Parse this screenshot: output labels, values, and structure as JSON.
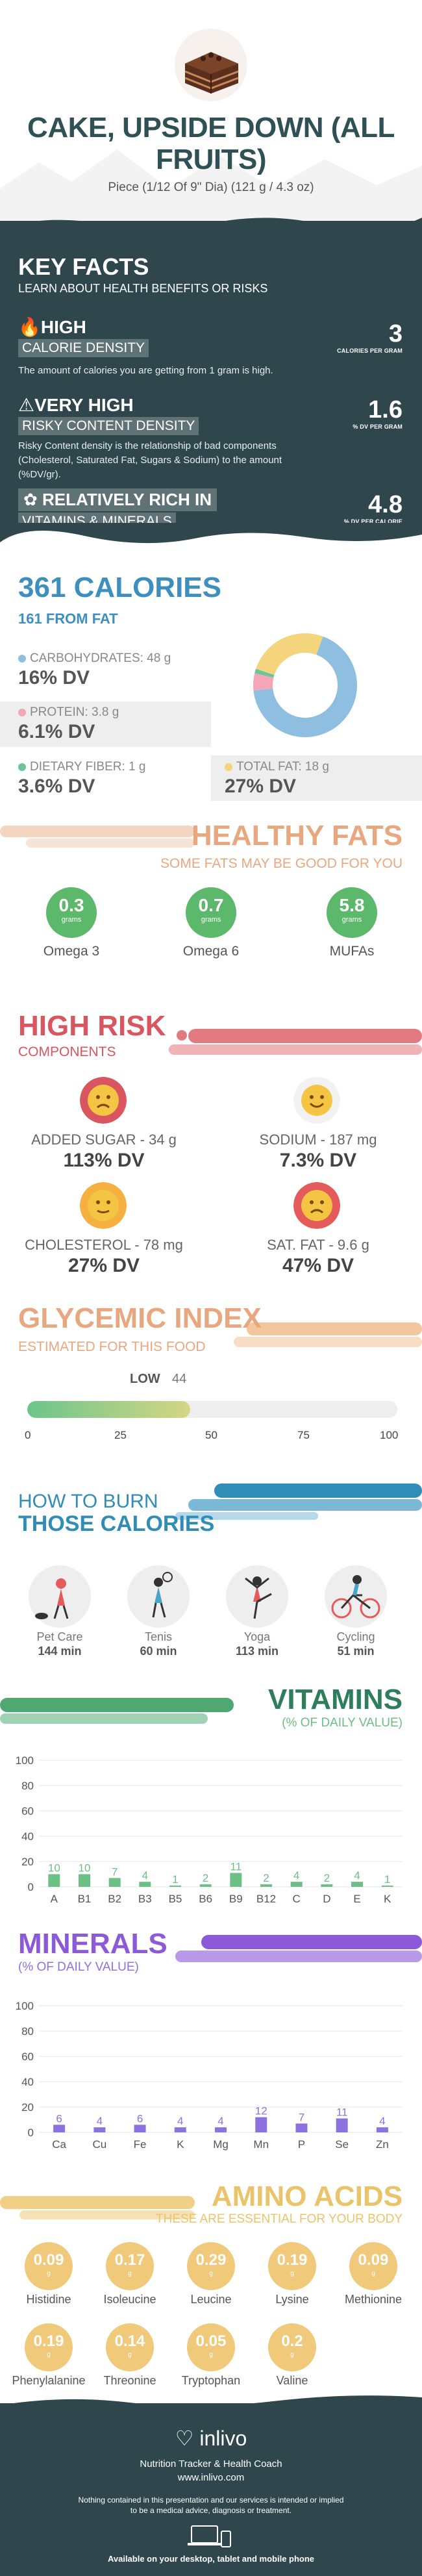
{
  "header": {
    "title": "CAKE, UPSIDE DOWN (ALL FRUITS)",
    "serving": "Piece (1/12 Of 9\" Dia) (121 g / 4.3 oz)"
  },
  "key_facts": {
    "title": "KEY FACTS",
    "subtitle": "LEARN ABOUT HEALTH BENEFITS OR RISKS",
    "items": [
      {
        "line1": "HIGH",
        "line2": "CALORIE DENSITY",
        "desc": "The amount of calories you are getting from 1 gram is high.",
        "value": "3",
        "unit": "CALORIES PER GRAM",
        "icon": "flame-icon"
      },
      {
        "line1": "VERY HIGH",
        "line2": "RISKY CONTENT DENSITY",
        "desc": "Risky Content density is the relationship of bad components (Cholesterol, Saturated Fat, Sugars & Sodium) to the amount (%DV/gr).",
        "value": "1.6",
        "unit": "% DV PER GRAM",
        "icon": "warning-icon"
      },
      {
        "line1": "RELATIVELY RICH  IN",
        "line2": "VITAMINS & MINERALS",
        "desc": "",
        "value": "4.8",
        "unit": "% DV PER CALORIE",
        "icon": "leaf-icon"
      }
    ]
  },
  "calories": {
    "title": "361 CALORIES",
    "subtitle": "161 FROM FAT",
    "macros": [
      {
        "label": "CARBOHYDRATES: 48 g",
        "dv": "16% DV",
        "color": "#8fbfe0"
      },
      {
        "label": "PROTEIN: 3.8 g",
        "dv": "6.1% DV",
        "color": "#f3a6b8"
      },
      {
        "label": "DIETARY FIBER: 1 g",
        "dv": "3.6% DV",
        "color": "#6cc59a"
      },
      {
        "label": "TOTAL FAT: 18 g",
        "dv": "27% DV",
        "color": "#f4d47c"
      }
    ],
    "donut": [
      {
        "name": "carbohydrates",
        "value": 48,
        "color": "#8fbfe0"
      },
      {
        "name": "protein",
        "value": 3.8,
        "color": "#f3a6b8"
      },
      {
        "name": "fiber",
        "value": 1,
        "color": "#6cc59a"
      },
      {
        "name": "fat",
        "value": 18,
        "color": "#f4d47c"
      }
    ]
  },
  "healthy_fats": {
    "title": "HEALTHY FATS",
    "subtitle": "SOME FATS MAY BE GOOD FOR YOU",
    "items": [
      {
        "value": "0.3",
        "unit": "grams",
        "name": "Omega 3"
      },
      {
        "value": "0.7",
        "unit": "grams",
        "name": "Omega 6"
      },
      {
        "value": "5.8",
        "unit": "grams",
        "name": "MUFAs"
      }
    ]
  },
  "high_risk": {
    "title": "HIGH RISK",
    "subtitle": "COMPONENTS",
    "items": [
      {
        "label": "ADDED SUGAR - 34 g",
        "dv": "113% DV",
        "face": "sad",
        "color": "#d9555f"
      },
      {
        "label": "SODIUM - 187 mg",
        "dv": "7.3% DV",
        "face": "happy",
        "color": "#f4d03f"
      },
      {
        "label": "CHOLESTEROL - 78 mg",
        "dv": "27% DV",
        "face": "neutral",
        "color": "#f5b041"
      },
      {
        "label": "SAT. FAT - 9.6 g",
        "dv": "47% DV",
        "face": "sad",
        "color": "#e55b5b"
      }
    ]
  },
  "glycemic": {
    "title": "GLYCEMIC INDEX",
    "subtitle": "ESTIMATED FOR THIS FOOD",
    "level": "LOW",
    "value": "44",
    "value_num": 44,
    "ticks": [
      "0",
      "25",
      "50",
      "75",
      "100"
    ]
  },
  "burn": {
    "title1": "HOW TO BURN",
    "title2": "THOSE CALORIES",
    "activities": [
      {
        "name": "Pet Care",
        "minutes": "144 min"
      },
      {
        "name": "Tenis",
        "minutes": "60 min"
      },
      {
        "name": "Yoga",
        "minutes": "113 min"
      },
      {
        "name": "Cycling",
        "minutes": "51 min"
      }
    ]
  },
  "vitamins": {
    "title": "VITAMINS",
    "subtitle": "(% OF DAILY VALUE)",
    "color": "#6cbf85",
    "chart_data": {
      "type": "bar",
      "categories": [
        "A",
        "B1",
        "B2",
        "B3",
        "B5",
        "B6",
        "B9",
        "B12",
        "C",
        "D",
        "E",
        "K"
      ],
      "values": [
        10,
        10,
        7,
        4,
        1,
        2,
        11,
        2,
        4,
        2,
        4,
        1
      ],
      "ylim": [
        0,
        100
      ],
      "yticks": [
        "0",
        "20",
        "40",
        "60",
        "80",
        "100"
      ]
    }
  },
  "minerals": {
    "title": "MINERALS",
    "subtitle": "(% OF DAILY VALUE)",
    "color": "#8c72e0",
    "chart_data": {
      "type": "bar",
      "categories": [
        "Ca",
        "Cu",
        "Fe",
        "K",
        "Mg",
        "Mn",
        "P",
        "Se",
        "Zn"
      ],
      "values": [
        6,
        4,
        6,
        4,
        4,
        12,
        7,
        11,
        4
      ],
      "ylim": [
        0,
        100
      ],
      "yticks": [
        "0",
        "20",
        "40",
        "60",
        "80",
        "100"
      ]
    }
  },
  "amino": {
    "title": "AMINO ACIDS",
    "subtitle": "THESE ARE ESSENTIAL FOR YOUR BODY",
    "items": [
      {
        "value": "0.09",
        "unit": "g",
        "name": "Histidine"
      },
      {
        "value": "0.17",
        "unit": "g",
        "name": "Isoleucine"
      },
      {
        "value": "0.29",
        "unit": "g",
        "name": "Leucine"
      },
      {
        "value": "0.19",
        "unit": "g",
        "name": "Lysine"
      },
      {
        "value": "0.09",
        "unit": "g",
        "name": "Methionine"
      },
      {
        "value": "0.19",
        "unit": "g",
        "name": "Phenylalanine"
      },
      {
        "value": "0.14",
        "unit": "g",
        "name": "Threonine"
      },
      {
        "value": "0.05",
        "unit": "g",
        "name": "Tryptophan"
      },
      {
        "value": "0.2",
        "unit": "g",
        "name": "Valine"
      }
    ]
  },
  "footer": {
    "brand": "inlivo",
    "tagline": "Nutrition Tracker & Health Coach",
    "url": "www.inlivo.com",
    "disclaimer1": "Nothing contained in this presentation and our services is intended or implied",
    "disclaimer2": "to be a medical advice, diagnosis or treatment.",
    "available": "Available on your desktop, tablet and mobile phone"
  }
}
